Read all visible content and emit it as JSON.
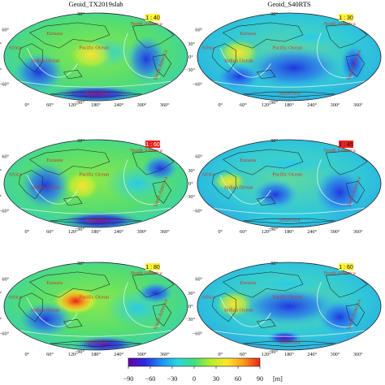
{
  "columns": [
    "Geoid_TX2019slab",
    "Geoid_S40RTS"
  ],
  "latitude_ticks": [
    "90°",
    "60°",
    "30°",
    "0°",
    "−30°",
    "−60°",
    "−90°"
  ],
  "longitude_ticks": [
    "0°",
    "60°",
    "120°",
    "180°",
    "240°",
    "300°",
    "360°"
  ],
  "region_labels": {
    "eurasia": "Eurasia",
    "africa": "Africa",
    "indian_ocean": "Indian Ocean",
    "pacific_ocean": "Pacific Ocean",
    "north_america": "North America",
    "south_america": "South America",
    "antarctica": "Antarctica"
  },
  "panels": [
    {
      "ratio": "1 : 40",
      "ratio_bg": "#fff23a",
      "ratio_fg": "#111111"
    },
    {
      "ratio": "1 : 30",
      "ratio_bg": "#fff23a",
      "ratio_fg": "#111111"
    },
    {
      "ratio": "1 : 60",
      "ratio_bg": "#e8231f",
      "ratio_fg": "#ffffff"
    },
    {
      "ratio": "1 : 45",
      "ratio_bg": "#e8231f",
      "ratio_fg": "#111111"
    },
    {
      "ratio": "1 : 80",
      "ratio_bg": "#fff23a",
      "ratio_fg": "#111111"
    },
    {
      "ratio": "1 : 60",
      "ratio_bg": "#fff23a",
      "ratio_fg": "#111111"
    }
  ],
  "colorbar": {
    "ticks": [
      "−90",
      "−60",
      "−30",
      "0",
      "30",
      "60",
      "90"
    ],
    "unit": "[m]",
    "colors": [
      "#6a00a8",
      "#2a2ae0",
      "#1f8ff0",
      "#28d7e0",
      "#3fe07a",
      "#b5ee2a",
      "#ffe62a",
      "#ff9a1a",
      "#e8231f"
    ],
    "range": [
      -90,
      90
    ]
  }
}
